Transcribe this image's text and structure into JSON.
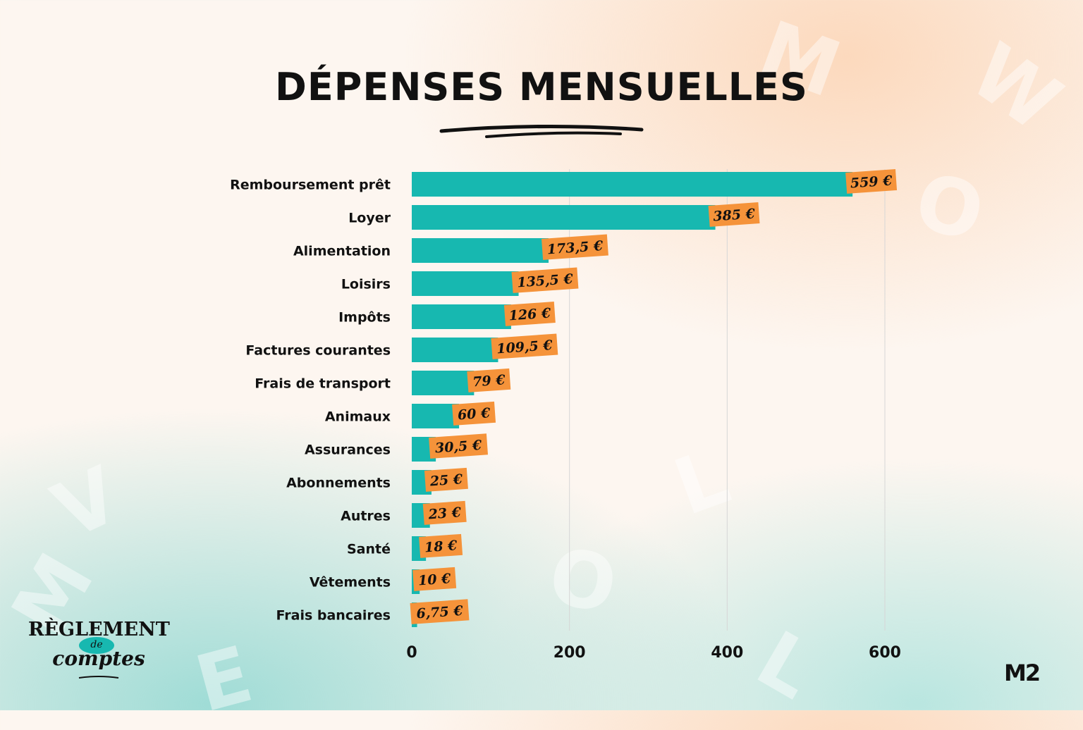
{
  "chart_data": {
    "type": "bar",
    "orientation": "horizontal",
    "title": "DÉPENSES MENSUELLES",
    "categories": [
      "Remboursement prêt",
      "Loyer",
      "Alimentation",
      "Loisirs",
      "Impôts",
      "Factures courantes",
      "Frais de transport",
      "Animaux",
      "Assurances",
      "Abonnements",
      "Autres",
      "Santé",
      "Vêtements",
      "Frais bancaires"
    ],
    "values": [
      559,
      385,
      173.5,
      135.5,
      126,
      109.5,
      79,
      60,
      30.5,
      25,
      23,
      18,
      10,
      6.75
    ],
    "value_labels": [
      "559 €",
      "385 €",
      "173,5 €",
      "135,5 €",
      "126 €",
      "109,5 €",
      "79 €",
      "60 €",
      "30,5 €",
      "25 €",
      "23 €",
      "18 €",
      "10 €",
      "6,75 €"
    ],
    "xticks": [
      0,
      200,
      400,
      600
    ],
    "xtick_labels": [
      "0",
      "200",
      "400",
      "600"
    ],
    "xlim": [
      0,
      600
    ],
    "grid": true,
    "legend": "none",
    "colors": {
      "bar": "#17b8b0",
      "label_bg": "#f5933a",
      "grid": "#d6d6d6",
      "text": "#111111"
    }
  },
  "logos": {
    "left_top": "RÈGLEMENT",
    "left_mid": "de",
    "left_bottom": "comptes",
    "right": "M2"
  }
}
